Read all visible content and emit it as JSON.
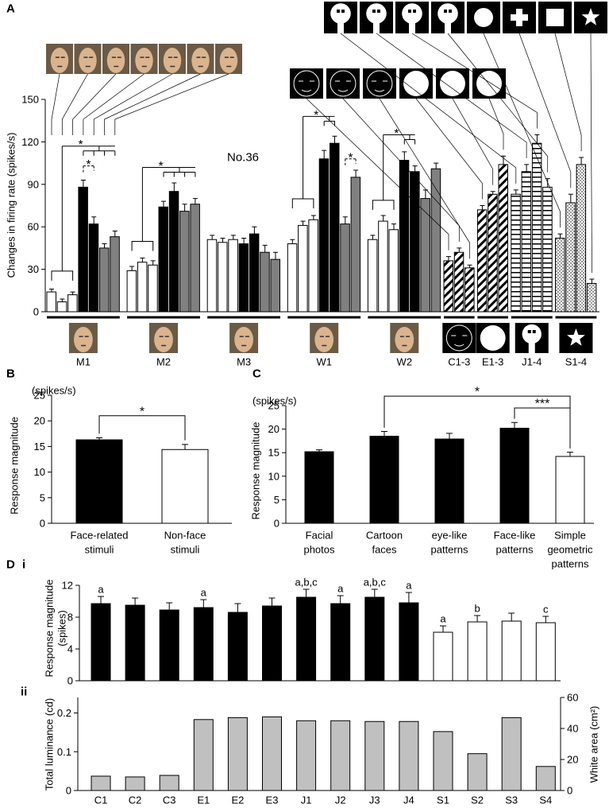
{
  "panel_labels": {
    "A": "A",
    "B": "B",
    "C": "C",
    "D": "D",
    "Di": "i",
    "Dii": "ii"
  },
  "chart_data": [
    {
      "type": "grouped_bar",
      "ylabel": "Changes in firing rate (spikes/s)",
      "annotation": "No.36",
      "ylim": [
        0,
        150
      ],
      "yticks": [
        0,
        30,
        60,
        90,
        120,
        150
      ],
      "groups": [
        {
          "label": "M1",
          "values": [
            14,
            7,
            12,
            88,
            62,
            45,
            53
          ],
          "errors": [
            2,
            2,
            2,
            5,
            5,
            3,
            4
          ],
          "fills": [
            "white",
            "white",
            "white",
            "black",
            "black",
            "gray",
            "gray"
          ]
        },
        {
          "label": "M2",
          "values": [
            29,
            35,
            33,
            74,
            85,
            71,
            76
          ],
          "errors": [
            3,
            3,
            3,
            4,
            6,
            5,
            4
          ],
          "fills": [
            "white",
            "white",
            "white",
            "black",
            "black",
            "gray",
            "gray"
          ]
        },
        {
          "label": "M3",
          "values": [
            51,
            49,
            51,
            48,
            55,
            42,
            37
          ],
          "errors": [
            3,
            3,
            3,
            4,
            5,
            5,
            5
          ],
          "fills": [
            "white",
            "white",
            "white",
            "black",
            "black",
            "gray",
            "gray"
          ]
        },
        {
          "label": "W1",
          "values": [
            48,
            61,
            65,
            108,
            119,
            62,
            95
          ],
          "errors": [
            3,
            3,
            3,
            6,
            5,
            5,
            5
          ],
          "fills": [
            "white",
            "white",
            "white",
            "black",
            "black",
            "gray",
            "gray"
          ]
        },
        {
          "label": "W2",
          "values": [
            51,
            64,
            58,
            107,
            99,
            80,
            101
          ],
          "errors": [
            3,
            4,
            4,
            6,
            4,
            6,
            4
          ],
          "fills": [
            "white",
            "white",
            "white",
            "black",
            "black",
            "gray",
            "gray"
          ]
        },
        {
          "label": "C1-3",
          "values": [
            36,
            42,
            31
          ],
          "errors": [
            3,
            3,
            2
          ],
          "fills": [
            "hatch",
            "hatch",
            "hatch"
          ]
        },
        {
          "label": "E1-3",
          "values": [
            72,
            83,
            104
          ],
          "errors": [
            3,
            2,
            6
          ],
          "fills": [
            "hatch",
            "hatch",
            "hatch"
          ]
        },
        {
          "label": "J1-4",
          "values": [
            83,
            99,
            119,
            88
          ],
          "errors": [
            3,
            5,
            6,
            6
          ],
          "fills": [
            "stripe",
            "stripe",
            "stripe",
            "stripe"
          ]
        },
        {
          "label": "S1-4",
          "values": [
            52,
            77,
            104,
            20
          ],
          "errors": [
            3,
            6,
            5,
            3
          ],
          "fills": [
            "dots",
            "dots",
            "dots",
            "dots"
          ]
        }
      ],
      "significance": [
        "*",
        "*",
        "*",
        "*",
        "*",
        "*"
      ]
    },
    {
      "type": "bar",
      "ylabel": "Response magnitude",
      "unit": "(spikes/s)",
      "ylim": [
        0,
        25
      ],
      "yticks": [
        0,
        5,
        10,
        15,
        20,
        25
      ],
      "categories": [
        [
          "Face-related",
          "stimuli"
        ],
        [
          "Non-face",
          "stimuli"
        ]
      ],
      "values": [
        16.3,
        14.4
      ],
      "errors": [
        0.4,
        1.0
      ],
      "colors": [
        "#000000",
        "#ffffff"
      ],
      "significance": [
        "*"
      ]
    },
    {
      "type": "bar",
      "ylabel": "Response magnitude",
      "unit": "(spikes/s)",
      "ylim": [
        0,
        25
      ],
      "yticks": [
        0,
        5,
        10,
        15,
        20,
        25
      ],
      "categories": [
        [
          "Facial",
          "photos"
        ],
        [
          "Cartoon",
          "faces"
        ],
        [
          "eye-like",
          "patterns"
        ],
        [
          "Face-like",
          "patterns"
        ],
        [
          "Simple",
          "geometric",
          "patterns"
        ]
      ],
      "values": [
        15.2,
        18.5,
        17.9,
        20.2,
        14.2
      ],
      "errors": [
        0.4,
        1.0,
        1.2,
        1.2,
        0.9
      ],
      "colors": [
        "#000000",
        "#000000",
        "#000000",
        "#000000",
        "#ffffff"
      ],
      "significance": [
        "*",
        "***"
      ]
    },
    {
      "type": "bar",
      "ylabel": [
        "Response magnitude",
        "(spikes)"
      ],
      "ylim": [
        0,
        12
      ],
      "yticks": [
        0,
        4,
        8,
        12
      ],
      "values": [
        9.7,
        9.5,
        8.9,
        9.2,
        8.6,
        9.4,
        10.5,
        9.7,
        10.5,
        9.8,
        6.1,
        7.4,
        7.5,
        7.3
      ],
      "errors": [
        0.9,
        0.9,
        0.9,
        1.0,
        1.1,
        1.0,
        1.0,
        1.0,
        1.0,
        1.3,
        0.8,
        0.8,
        1.0,
        0.8
      ],
      "letters": [
        "a",
        null,
        null,
        "a",
        null,
        null,
        "a,b,c",
        "a",
        "a,b,c",
        "a",
        "a",
        "b",
        null,
        "c"
      ],
      "colors": [
        "#000000",
        "#000000",
        "#000000",
        "#000000",
        "#000000",
        "#000000",
        "#000000",
        "#000000",
        "#000000",
        "#000000",
        "#ffffff",
        "#ffffff",
        "#ffffff",
        "#ffffff"
      ]
    },
    {
      "type": "bar",
      "ylabel": "Total luminance (cd)",
      "y2label": "White area (cm²)",
      "categories": [
        "C1",
        "C2",
        "C3",
        "E1",
        "E2",
        "E3",
        "J1",
        "J2",
        "J3",
        "J4",
        "S1",
        "S2",
        "S3",
        "S4"
      ],
      "values": [
        0.037,
        0.035,
        0.039,
        0.183,
        0.188,
        0.19,
        0.18,
        0.18,
        0.178,
        0.178,
        0.152,
        0.095,
        0.188,
        0.062
      ],
      "color": "#c0c0c0",
      "ylim": [
        0,
        0.24
      ],
      "yticks": [
        0,
        0.1,
        0.2
      ],
      "y2lim": [
        0,
        60
      ],
      "y2ticks": [
        0,
        20,
        40,
        60
      ]
    }
  ]
}
